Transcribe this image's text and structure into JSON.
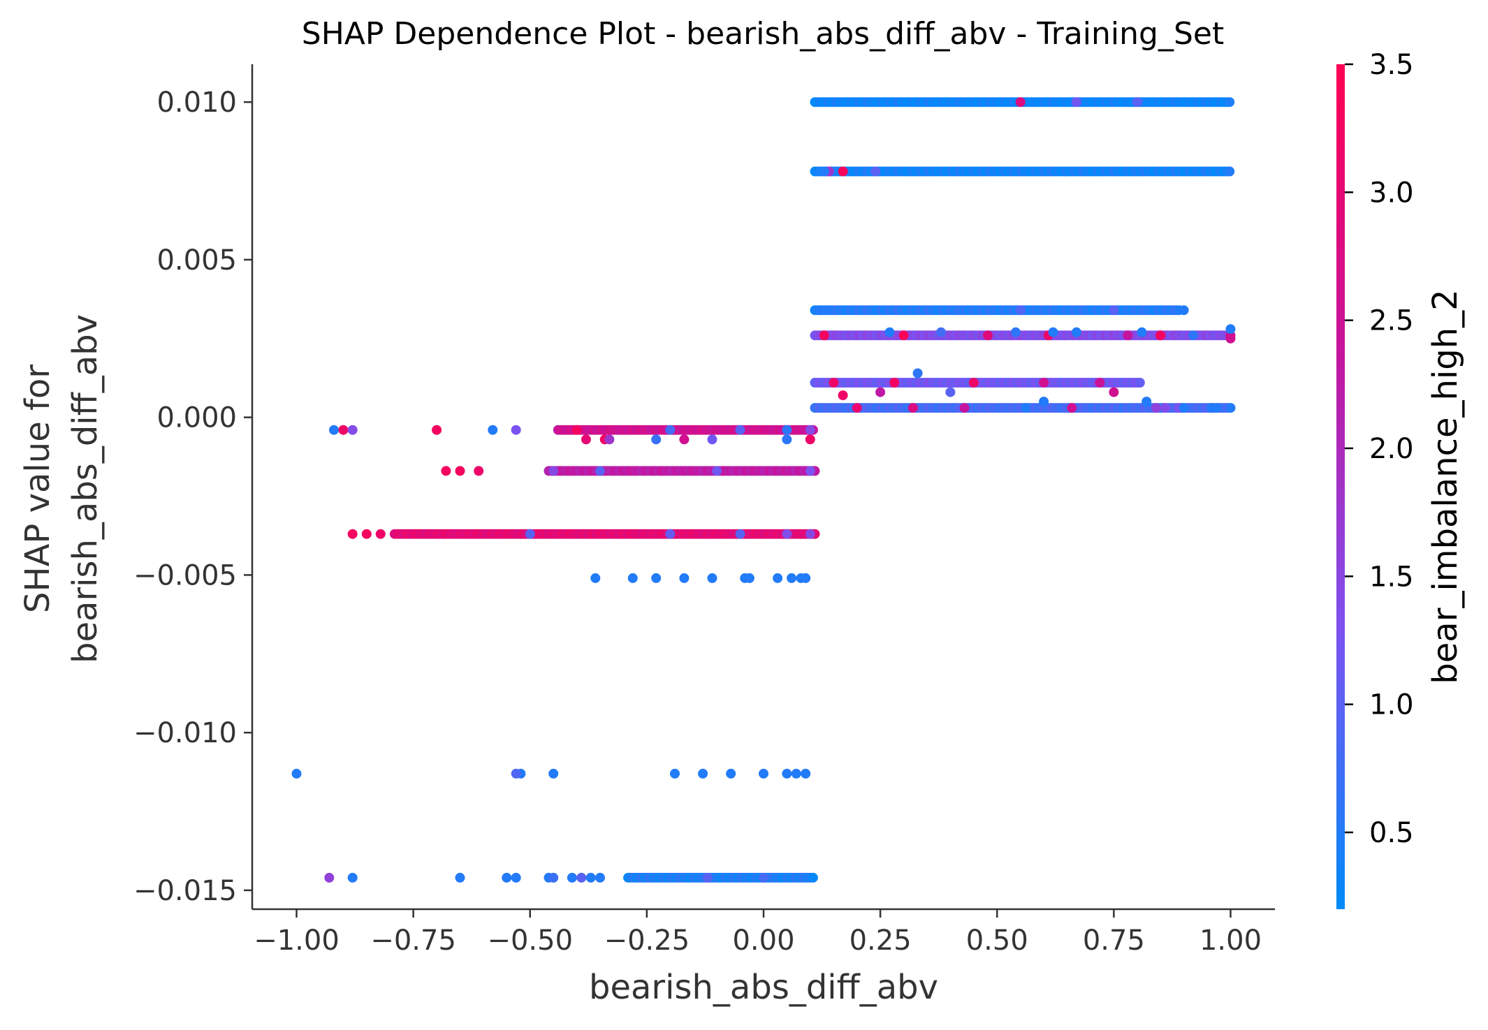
{
  "chart_data": {
    "type": "scatter",
    "title": "SHAP Dependence Plot - bearish_abs_diff_abv - Training_Set",
    "xlabel": "bearish_abs_diff_abv",
    "ylabel_lines": [
      "SHAP value for",
      "bearish_abs_diff_abv"
    ],
    "xlim": [
      -1.095,
      1.095
    ],
    "ylim": [
      -0.0156,
      0.0112
    ],
    "x_ticks": [
      -1.0,
      -0.75,
      -0.5,
      -0.25,
      0.0,
      0.25,
      0.5,
      0.75,
      1.0
    ],
    "x_tick_labels": [
      "−1.00",
      "−0.75",
      "−0.50",
      "−0.25",
      "0.00",
      "0.25",
      "0.50",
      "0.75",
      "1.00"
    ],
    "y_ticks": [
      0.01,
      0.005,
      0.0,
      -0.005,
      -0.01,
      -0.015
    ],
    "y_tick_labels": [
      "0.010",
      "0.005",
      "0.000",
      "−0.005",
      "−0.010",
      "−0.015"
    ],
    "grid": false,
    "colorbar": {
      "label": "bear_imbalance_high_2",
      "range": [
        0.2,
        3.5
      ],
      "ticks": [
        0.5,
        1.0,
        1.5,
        2.0,
        2.5,
        3.0,
        3.5
      ],
      "tick_labels": [
        "0.5",
        "1.0",
        "1.5",
        "2.0",
        "2.5",
        "3.0",
        "3.5"
      ],
      "colors": [
        "#008bfa",
        "#7c52f1",
        "#c5149e",
        "#ff0052"
      ]
    },
    "bands": [
      {
        "y": 0.01,
        "x_start": 0.11,
        "x_end": 1.0,
        "level": 0.3,
        "accents": [
          [
            0.55,
            2.8
          ],
          [
            0.67,
            1.2
          ],
          [
            0.8,
            1.0
          ]
        ]
      },
      {
        "y": 0.0078,
        "x_start": 0.11,
        "x_end": 1.0,
        "level": 0.35,
        "accents": [
          [
            0.14,
            1.8
          ],
          [
            0.17,
            3.4
          ],
          [
            0.24,
            1.0
          ]
        ]
      },
      {
        "y": 0.0034,
        "x_start": 0.11,
        "x_end": 0.89,
        "level": 0.5,
        "accents": [
          [
            0.55,
            0.9
          ],
          [
            0.75,
            1.0
          ]
        ]
      },
      {
        "y": 0.0026,
        "x_start": 0.11,
        "x_end": 1.0,
        "level": 1.4,
        "accents": [
          [
            0.13,
            3.3
          ],
          [
            0.3,
            3.4
          ],
          [
            0.48,
            2.9
          ],
          [
            0.61,
            3.2
          ],
          [
            0.78,
            2.4
          ],
          [
            0.85,
            3.3
          ],
          [
            1.0,
            2.6
          ]
        ]
      },
      {
        "y": 0.0011,
        "x_start": 0.11,
        "x_end": 0.81,
        "level": 1.2,
        "accents": [
          [
            0.15,
            3.2
          ],
          [
            0.28,
            3.3
          ],
          [
            0.45,
            3.2
          ],
          [
            0.6,
            2.6
          ],
          [
            0.72,
            2.5
          ]
        ]
      },
      {
        "y": 0.0003,
        "x_start": 0.11,
        "x_end": 1.0,
        "level": 0.8,
        "accents": [
          [
            0.2,
            3.1
          ],
          [
            0.32,
            2.8
          ],
          [
            0.43,
            2.4
          ],
          [
            0.66,
            2.6
          ],
          [
            0.84,
            1.6
          ],
          [
            0.89,
            1.3
          ]
        ]
      },
      {
        "y": -0.0004,
        "x_start": -0.44,
        "x_end": 0.11,
        "level": 2.6,
        "accents": [
          [
            -0.2,
            0.8
          ],
          [
            -0.05,
            1.0
          ],
          [
            0.05,
            0.6
          ],
          [
            0.1,
            1.4
          ]
        ]
      },
      {
        "y": -0.0017,
        "x_start": -0.46,
        "x_end": 0.11,
        "level": 2.3,
        "accents": [
          [
            -0.45,
            1.5
          ],
          [
            -0.35,
            1.0
          ],
          [
            -0.1,
            1.2
          ],
          [
            0.1,
            1.3
          ]
        ]
      },
      {
        "y": -0.0037,
        "x_start": -0.79,
        "x_end": 0.11,
        "level": 3.0,
        "accents": [
          [
            -0.5,
            1.0
          ],
          [
            -0.2,
            1.1
          ],
          [
            -0.05,
            1.0
          ],
          [
            0.05,
            1.4
          ],
          [
            0.1,
            1.5
          ]
        ]
      },
      {
        "y": -0.0146,
        "x_start": -0.29,
        "x_end": 0.11,
        "level": 0.45,
        "accents": [
          [
            -0.12,
            1.0
          ],
          [
            0.0,
            0.8
          ]
        ]
      }
    ],
    "points": [
      {
        "x": -0.92,
        "y": -0.0004,
        "c": 0.5
      },
      {
        "x": -0.9,
        "y": -0.0004,
        "c": 3.2
      },
      {
        "x": -0.88,
        "y": -0.0004,
        "c": 1.4
      },
      {
        "x": -0.7,
        "y": -0.0004,
        "c": 3.3
      },
      {
        "x": -0.58,
        "y": -0.0004,
        "c": 0.5
      },
      {
        "x": -0.53,
        "y": -0.0004,
        "c": 1.3
      },
      {
        "x": -0.68,
        "y": -0.0017,
        "c": 3.3
      },
      {
        "x": -0.65,
        "y": -0.0017,
        "c": 3.3
      },
      {
        "x": -0.61,
        "y": -0.0017,
        "c": 3.2
      },
      {
        "x": -0.88,
        "y": -0.0037,
        "c": 3.3
      },
      {
        "x": -0.85,
        "y": -0.0037,
        "c": 3.3
      },
      {
        "x": -0.82,
        "y": -0.0037,
        "c": 3.2
      },
      {
        "x": -0.36,
        "y": -0.0051,
        "c": 0.5
      },
      {
        "x": -0.28,
        "y": -0.0051,
        "c": 0.5
      },
      {
        "x": -0.23,
        "y": -0.0051,
        "c": 0.5
      },
      {
        "x": -0.17,
        "y": -0.0051,
        "c": 0.5
      },
      {
        "x": -0.11,
        "y": -0.0051,
        "c": 0.5
      },
      {
        "x": -0.04,
        "y": -0.0051,
        "c": 0.5
      },
      {
        "x": -0.03,
        "y": -0.0051,
        "c": 0.5
      },
      {
        "x": 0.03,
        "y": -0.0051,
        "c": 0.5
      },
      {
        "x": 0.06,
        "y": -0.0051,
        "c": 0.5
      },
      {
        "x": 0.08,
        "y": -0.0051,
        "c": 0.5
      },
      {
        "x": 0.09,
        "y": -0.0051,
        "c": 0.5
      },
      {
        "x": -1.0,
        "y": -0.0113,
        "c": 0.5
      },
      {
        "x": -0.52,
        "y": -0.0113,
        "c": 0.5
      },
      {
        "x": -0.53,
        "y": -0.0113,
        "c": 0.9
      },
      {
        "x": -0.45,
        "y": -0.0113,
        "c": 0.5
      },
      {
        "x": -0.19,
        "y": -0.0113,
        "c": 0.5
      },
      {
        "x": -0.13,
        "y": -0.0113,
        "c": 0.5
      },
      {
        "x": -0.07,
        "y": -0.0113,
        "c": 0.5
      },
      {
        "x": 0.0,
        "y": -0.0113,
        "c": 0.5
      },
      {
        "x": 0.05,
        "y": -0.0113,
        "c": 0.5
      },
      {
        "x": 0.07,
        "y": -0.0113,
        "c": 0.5
      },
      {
        "x": 0.09,
        "y": -0.0113,
        "c": 0.5
      },
      {
        "x": -0.93,
        "y": -0.0146,
        "c": 1.6
      },
      {
        "x": -0.88,
        "y": -0.0146,
        "c": 0.5
      },
      {
        "x": -0.65,
        "y": -0.0146,
        "c": 0.5
      },
      {
        "x": -0.55,
        "y": -0.0146,
        "c": 0.5
      },
      {
        "x": -0.53,
        "y": -0.0146,
        "c": 0.5
      },
      {
        "x": -0.46,
        "y": -0.0146,
        "c": 0.5
      },
      {
        "x": -0.45,
        "y": -0.0146,
        "c": 0.7
      },
      {
        "x": -0.41,
        "y": -0.0146,
        "c": 0.5
      },
      {
        "x": -0.39,
        "y": -0.0146,
        "c": 1.0
      },
      {
        "x": -0.37,
        "y": -0.0146,
        "c": 0.5
      },
      {
        "x": -0.35,
        "y": -0.0146,
        "c": 0.5
      },
      {
        "x": -0.4,
        "y": -0.0004,
        "c": 3.3
      },
      {
        "x": -0.38,
        "y": -0.0007,
        "c": 3.0
      },
      {
        "x": -0.34,
        "y": -0.0007,
        "c": 3.2
      },
      {
        "x": -0.33,
        "y": -0.0007,
        "c": 1.8
      },
      {
        "x": -0.23,
        "y": -0.0007,
        "c": 0.7
      },
      {
        "x": -0.17,
        "y": -0.0007,
        "c": 2.6
      },
      {
        "x": -0.11,
        "y": -0.0007,
        "c": 1.2
      },
      {
        "x": 0.05,
        "y": -0.0007,
        "c": 0.6
      },
      {
        "x": 0.1,
        "y": -0.0007,
        "c": 3.2
      },
      {
        "x": 0.17,
        "y": 0.0007,
        "c": 3.2
      },
      {
        "x": 0.25,
        "y": 0.0008,
        "c": 2.3
      },
      {
        "x": 0.4,
        "y": 0.0008,
        "c": 1.0
      },
      {
        "x": 0.75,
        "y": 0.0008,
        "c": 2.6
      },
      {
        "x": 0.33,
        "y": 0.0014,
        "c": 0.6
      },
      {
        "x": 0.12,
        "y": 0.0034,
        "c": 0.5
      },
      {
        "x": 0.14,
        "y": 0.0034,
        "c": 0.5
      },
      {
        "x": 0.9,
        "y": 0.0034,
        "c": 0.5
      },
      {
        "x": 0.27,
        "y": 0.0027,
        "c": 0.5
      },
      {
        "x": 0.38,
        "y": 0.0027,
        "c": 0.8
      },
      {
        "x": 0.54,
        "y": 0.0027,
        "c": 0.6
      },
      {
        "x": 0.62,
        "y": 0.0027,
        "c": 0.5
      },
      {
        "x": 0.67,
        "y": 0.0027,
        "c": 0.5
      },
      {
        "x": 0.81,
        "y": 0.0027,
        "c": 0.5
      },
      {
        "x": 0.92,
        "y": 0.0026,
        "c": 0.6
      },
      {
        "x": 1.0,
        "y": 0.0028,
        "c": 0.5
      },
      {
        "x": 1.0,
        "y": 0.0025,
        "c": 2.6
      },
      {
        "x": 0.96,
        "y": 0.0003,
        "c": 0.5
      },
      {
        "x": 0.97,
        "y": 0.0003,
        "c": 0.5
      },
      {
        "x": 1.0,
        "y": 0.0003,
        "c": 0.5
      },
      {
        "x": 0.9,
        "y": 0.0003,
        "c": 0.5
      },
      {
        "x": 0.86,
        "y": 0.0003,
        "c": 1.4
      },
      {
        "x": 0.82,
        "y": 0.0005,
        "c": 0.5
      },
      {
        "x": 0.6,
        "y": 0.0005,
        "c": 0.5
      },
      {
        "x": 0.56,
        "y": 0.0003,
        "c": 0.5
      },
      {
        "x": 0.13,
        "y": 0.0078,
        "c": 0.5
      }
    ]
  }
}
